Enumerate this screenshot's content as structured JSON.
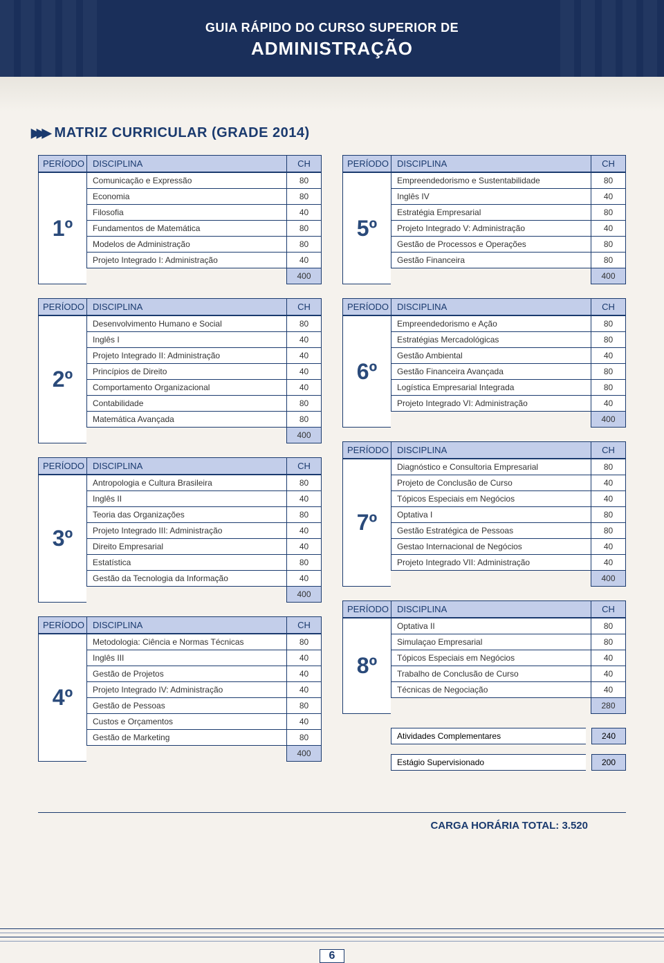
{
  "header": {
    "sup": "GUIA RÁPIDO DO CURSO SUPERIOR DE",
    "main": "ADMINISTRAÇÃO"
  },
  "section_title": "MATRIZ CURRICULAR (GRADE 2014)",
  "labels": {
    "periodo": "PERÍODO",
    "disciplina": "DISCIPLINA",
    "ch": "CH"
  },
  "colors": {
    "navy": "#1a3a6e",
    "header_bg": "#c3ceea",
    "page_bg": "#f5f2ed",
    "dark_navy": "#1a2f5a"
  },
  "periodos": {
    "p1": {
      "num": "1º",
      "rows": [
        {
          "d": "Comunicação e Expressão",
          "c": "80"
        },
        {
          "d": "Economia",
          "c": "80"
        },
        {
          "d": "Filosofia",
          "c": "40"
        },
        {
          "d": "Fundamentos de Matemática",
          "c": "80"
        },
        {
          "d": "Modelos de Administração",
          "c": "80"
        },
        {
          "d": "Projeto Integrado I: Administração",
          "c": "40"
        }
      ],
      "total": "400"
    },
    "p2": {
      "num": "2º",
      "rows": [
        {
          "d": "Desenvolvimento Humano e Social",
          "c": "80"
        },
        {
          "d": "Inglês I",
          "c": "40"
        },
        {
          "d": "Projeto Integrado II: Administração",
          "c": "40"
        },
        {
          "d": "Princípios de Direito",
          "c": "40"
        },
        {
          "d": "Comportamento Organizacional",
          "c": "40"
        },
        {
          "d": "Contabilidade",
          "c": "80"
        },
        {
          "d": "Matemática Avançada",
          "c": "80"
        }
      ],
      "total": "400"
    },
    "p3": {
      "num": "3º",
      "rows": [
        {
          "d": "Antropologia e Cultura Brasileira",
          "c": "80"
        },
        {
          "d": "Inglês II",
          "c": "40"
        },
        {
          "d": "Teoria das Organizações",
          "c": "80"
        },
        {
          "d": "Projeto Integrado III: Administração",
          "c": "40"
        },
        {
          "d": "Direito Empresarial",
          "c": "40"
        },
        {
          "d": "Estatística",
          "c": "80"
        },
        {
          "d": "Gestão da Tecnologia da Informação",
          "c": "40"
        }
      ],
      "total": "400"
    },
    "p4": {
      "num": "4º",
      "rows": [
        {
          "d": "Metodologia: Ciência e Normas Técnicas",
          "c": "80"
        },
        {
          "d": "Inglês III",
          "c": "40"
        },
        {
          "d": "Gestão de Projetos",
          "c": "40"
        },
        {
          "d": "Projeto Integrado IV: Administração",
          "c": "40"
        },
        {
          "d": "Gestão de Pessoas",
          "c": "80"
        },
        {
          "d": "Custos e Orçamentos",
          "c": "40"
        },
        {
          "d": "Gestão de Marketing",
          "c": "80"
        }
      ],
      "total": "400"
    },
    "p5": {
      "num": "5º",
      "rows": [
        {
          "d": "Empreendedorismo e Sustentabilidade",
          "c": "80"
        },
        {
          "d": "Inglês IV",
          "c": "40"
        },
        {
          "d": "Estratégia Empresarial",
          "c": "80"
        },
        {
          "d": "Projeto Integrado V: Administração",
          "c": "40"
        },
        {
          "d": "Gestão de Processos e Operações",
          "c": "80"
        },
        {
          "d": "Gestão Financeira",
          "c": "80"
        }
      ],
      "total": "400"
    },
    "p6": {
      "num": "6º",
      "rows": [
        {
          "d": "Empreendedorismo e Ação",
          "c": "80"
        },
        {
          "d": "Estratégias Mercadológicas",
          "c": "80"
        },
        {
          "d": "Gestão Ambiental",
          "c": "40"
        },
        {
          "d": "Gestão Financeira Avançada",
          "c": "80"
        },
        {
          "d": "Logística Empresarial Integrada",
          "c": "80"
        },
        {
          "d": "Projeto Integrado VI: Administração",
          "c": "40"
        }
      ],
      "total": "400"
    },
    "p7": {
      "num": "7º",
      "rows": [
        {
          "d": "Diagnóstico e Consultoria Empresarial",
          "c": "80"
        },
        {
          "d": "Projeto de Conclusão de Curso",
          "c": "40"
        },
        {
          "d": "Tópicos Especiais em Negócios",
          "c": "40"
        },
        {
          "d": "Optativa I",
          "c": "80"
        },
        {
          "d": "Gestão Estratégica de Pessoas",
          "c": "80"
        },
        {
          "d": "Gestao Internacional de Negócios",
          "c": "40"
        },
        {
          "d": "Projeto Integrado VII: Administração",
          "c": "40"
        }
      ],
      "total": "400"
    },
    "p8": {
      "num": "8º",
      "rows": [
        {
          "d": "Optativa II",
          "c": "80"
        },
        {
          "d": "Simulaçao Empresarial",
          "c": "80"
        },
        {
          "d": "Tópicos Especiais em Negócios",
          "c": "40"
        },
        {
          "d": "Trabalho de Conclusão de Curso",
          "c": "40"
        },
        {
          "d": "Técnicas de Negociação",
          "c": "40"
        }
      ],
      "total": "280"
    }
  },
  "extras": [
    {
      "d": "Atividades Complementares",
      "c": "240"
    },
    {
      "d": "Estágio Supervisionado",
      "c": "200"
    }
  ],
  "carga_total": "CARGA HORÁRIA TOTAL: 3.520",
  "page_num": "6"
}
